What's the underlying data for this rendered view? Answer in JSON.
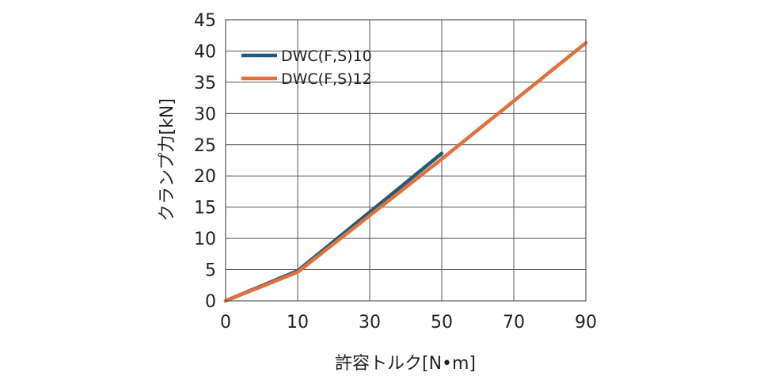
{
  "chart_data": {
    "type": "line",
    "xlabel": "許容トルク[N•m]",
    "ylabel": "クランプ力[kN]",
    "x_ticks": [
      "0",
      "10",
      "30",
      "50",
      "70",
      "90"
    ],
    "y_ticks": [
      "0",
      "5",
      "10",
      "15",
      "20",
      "25",
      "30",
      "35",
      "40",
      "45"
    ],
    "ylim": [
      0,
      45
    ],
    "grid": true,
    "legend_position": "top-left",
    "series": [
      {
        "name": "DWC(F,S)10",
        "color": "#1f5a78",
        "points": [
          [
            0,
            0
          ],
          [
            10,
            4.8
          ],
          [
            50,
            23.6
          ]
        ]
      },
      {
        "name": "DWC(F,S)12",
        "color": "#e2703a",
        "points": [
          [
            0,
            0
          ],
          [
            10,
            4.6
          ],
          [
            50,
            22.7
          ],
          [
            90,
            41.3
          ]
        ]
      }
    ]
  }
}
